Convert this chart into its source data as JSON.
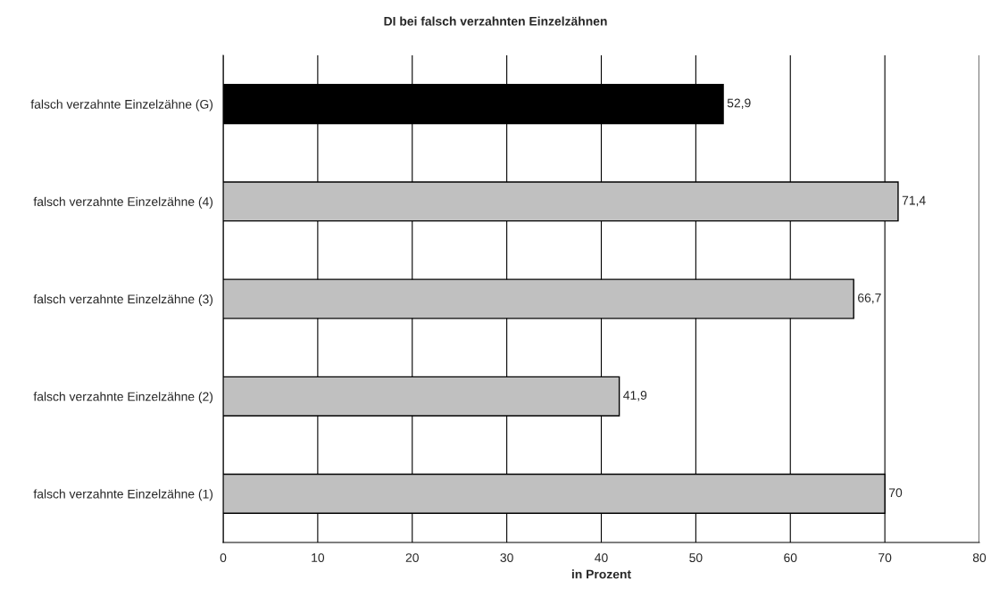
{
  "chart_data": {
    "type": "bar",
    "orientation": "horizontal",
    "title": "DI bei falsch verzahnten Einzelzähnen",
    "xlabel": "in Prozent",
    "categories": [
      "falsch verzahnte Einzelzähne (G)",
      "falsch verzahnte Einzelzähne (4)",
      "falsch verzahnte Einzelzähne (3)",
      "falsch verzahnte Einzelzähne (2)",
      "falsch verzahnte Einzelzähne (1)"
    ],
    "values": [
      52.9,
      71.4,
      66.7,
      41.9,
      70
    ],
    "colors": [
      "#000000",
      "#c0c0c0",
      "#c0c0c0",
      "#c0c0c0",
      "#c0c0c0"
    ],
    "value_labels": [
      "52,9",
      "71,4",
      "66,7",
      "41,9",
      "70"
    ],
    "xlim": [
      0,
      80
    ],
    "xticks": [
      0,
      10,
      20,
      30,
      40,
      50,
      60,
      70,
      80
    ],
    "grid": "x"
  }
}
